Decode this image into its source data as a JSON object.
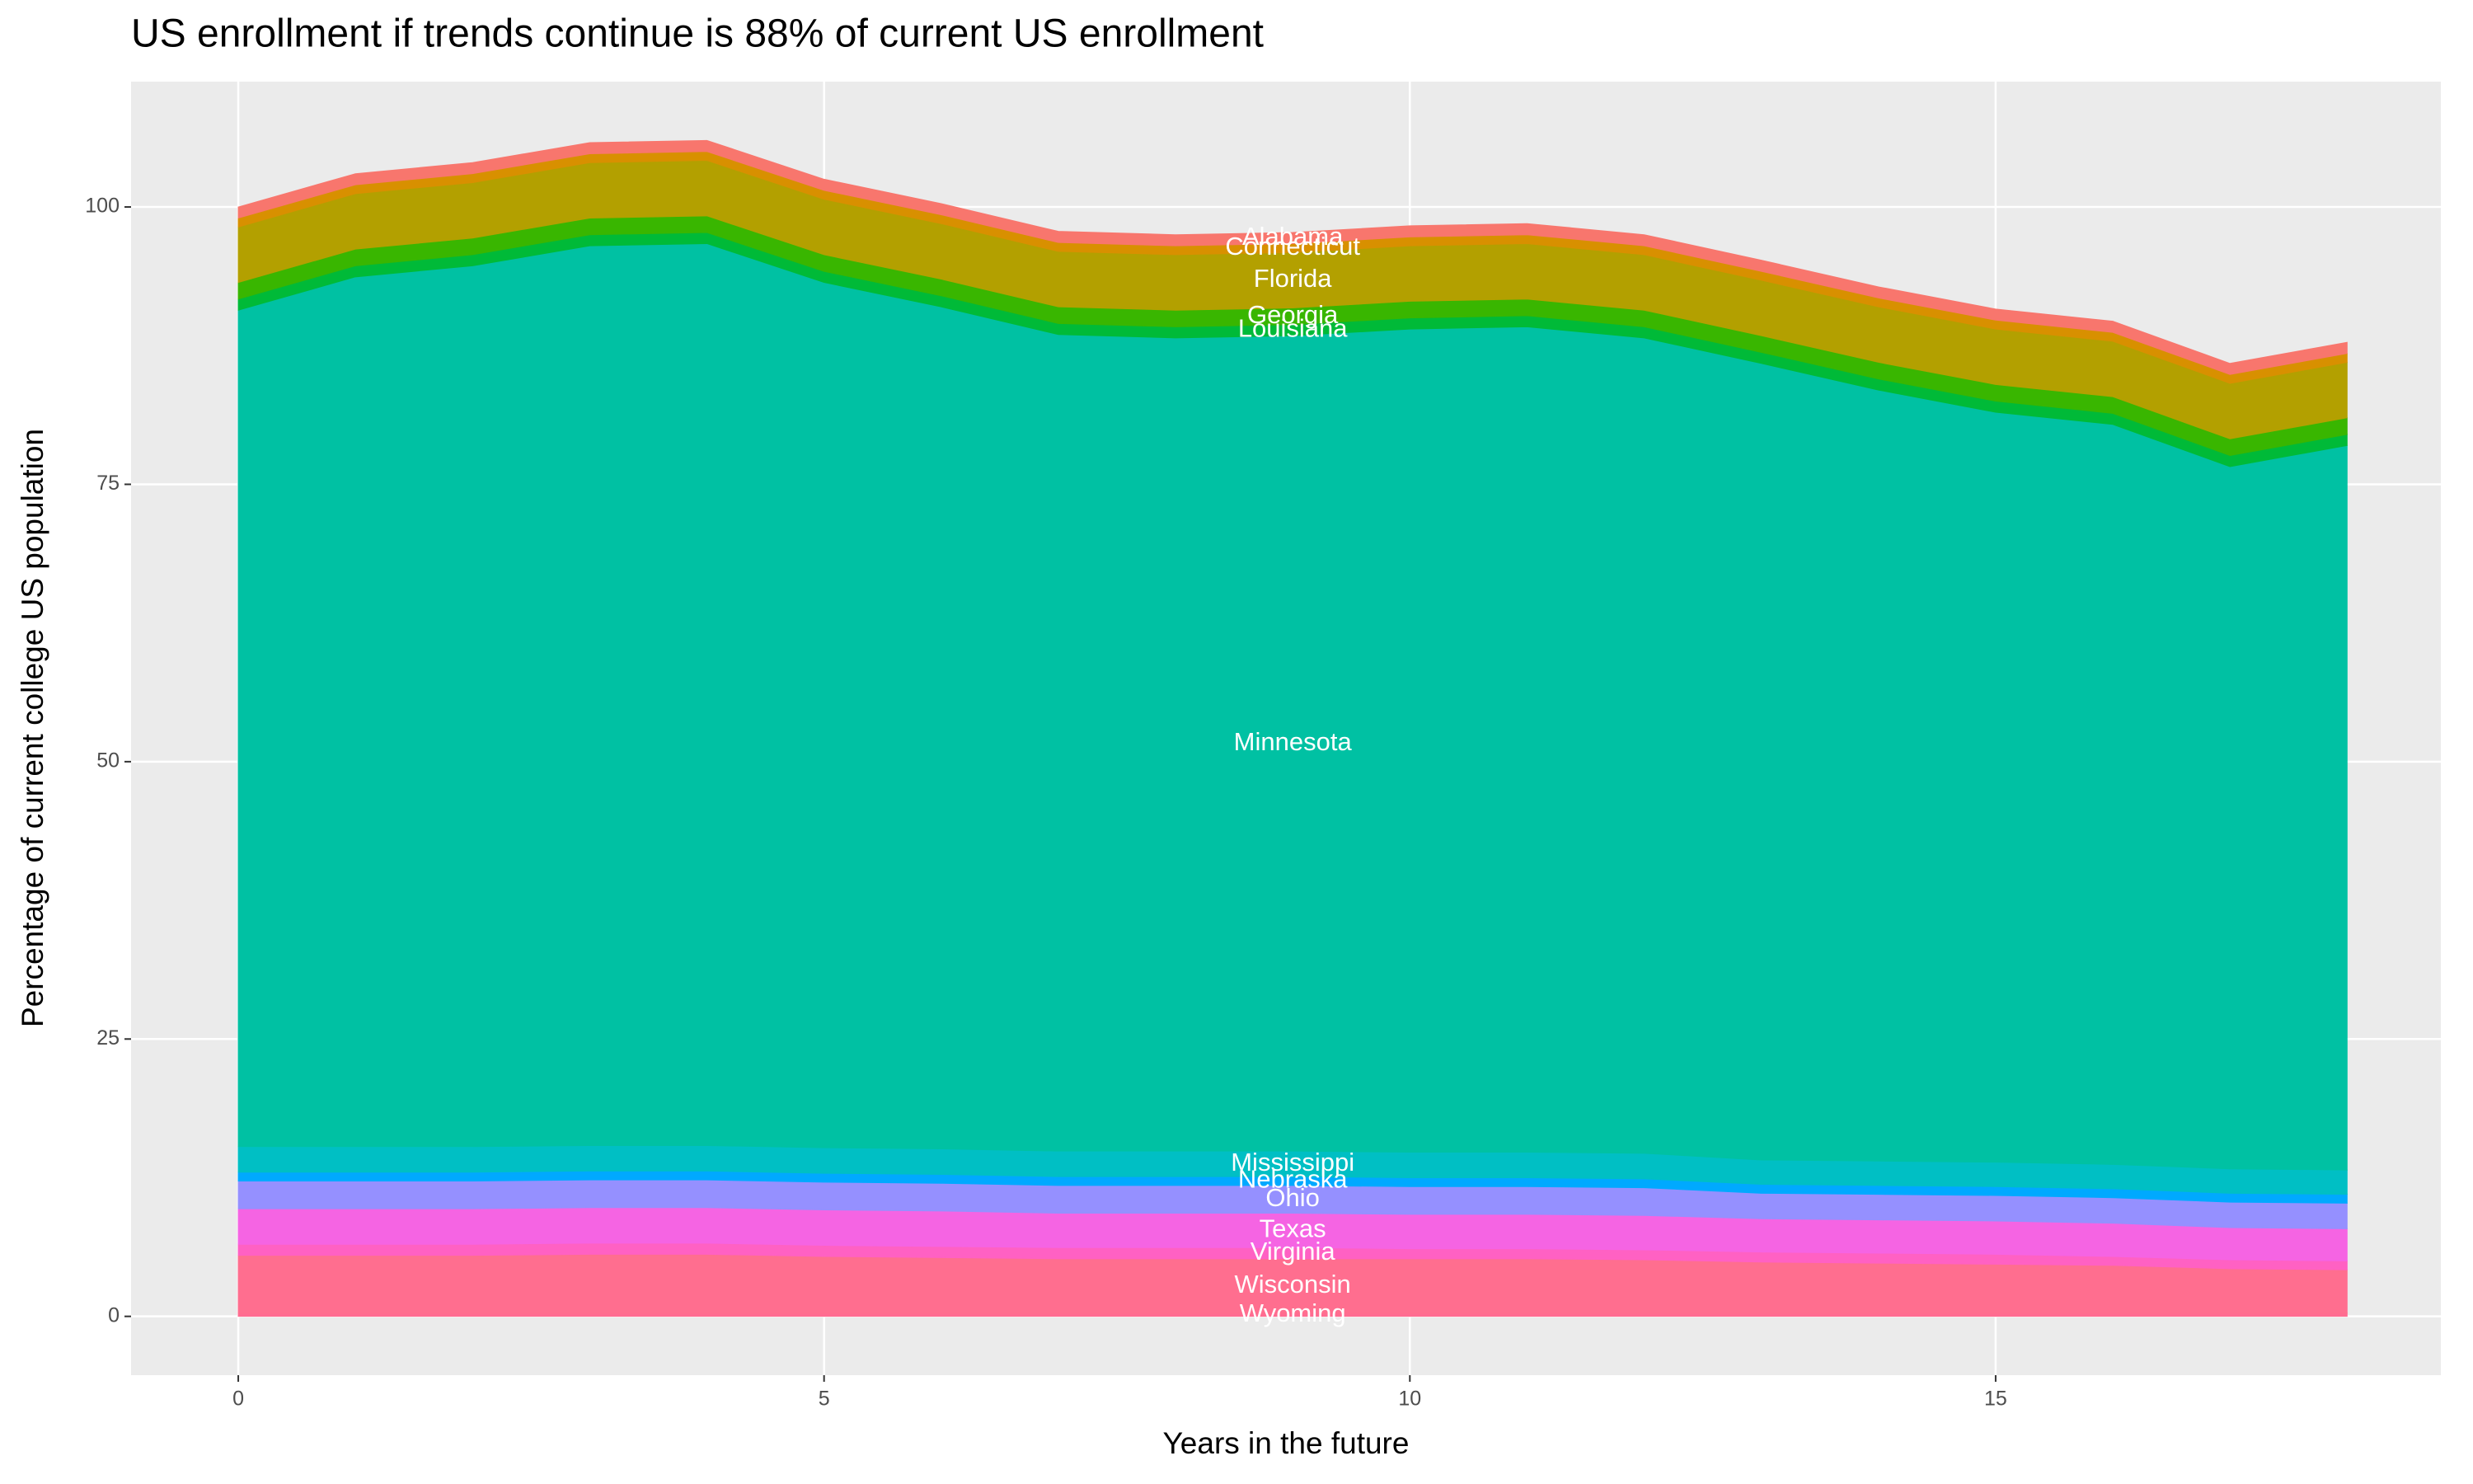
{
  "chart_data": {
    "type": "stacked_area",
    "title": "US enrollment if trends continue is 88% of current US enrollment",
    "x_label": "Years in the future",
    "y_label": "Percentage of current college US population",
    "x": [
      0,
      1,
      2,
      3,
      4,
      5,
      6,
      7,
      8,
      9,
      10,
      11,
      12,
      13,
      14,
      15,
      16,
      17,
      18
    ],
    "xlim": [
      -0.915,
      18.8
    ],
    "xticks": [
      0,
      5,
      10,
      15
    ],
    "ylim": [
      -5.3,
      111.3
    ],
    "yticks": [
      0,
      25,
      50,
      75,
      100
    ],
    "grid": true,
    "series": [
      {
        "name": "Wyoming",
        "color": "#FF6C91",
        "values": [
          0.3,
          0.3,
          0.3,
          0.3,
          0.3,
          0.3,
          0.3,
          0.3,
          0.3,
          0.3,
          0.3,
          0.3,
          0.3,
          0.3,
          0.3,
          0.3,
          0.3,
          0.3,
          0.3
        ]
      },
      {
        "name": "Wisconsin",
        "color": "#FF6E8F",
        "values": [
          5.2,
          5.2,
          5.2,
          5.3,
          5.3,
          5.1,
          5.0,
          4.9,
          4.9,
          4.9,
          4.9,
          4.9,
          4.8,
          4.6,
          4.5,
          4.4,
          4.3,
          4.0,
          3.9
        ]
      },
      {
        "name": "Virginia",
        "color": "#FF61C3",
        "values": [
          1.0,
          1.0,
          1.0,
          1.0,
          1.0,
          1.0,
          1.0,
          1.0,
          1.0,
          1.0,
          0.9,
          0.9,
          0.9,
          0.9,
          0.9,
          0.9,
          0.8,
          0.8,
          0.8
        ]
      },
      {
        "name": "Texas",
        "color": "#F564E3",
        "values": [
          3.2,
          3.2,
          3.2,
          3.2,
          3.2,
          3.2,
          3.2,
          3.1,
          3.1,
          3.1,
          3.1,
          3.1,
          3.1,
          3.0,
          3.0,
          3.0,
          3.0,
          2.9,
          2.9
        ]
      },
      {
        "name": "Ohio",
        "color": "#9590FF",
        "values": [
          2.5,
          2.5,
          2.5,
          2.5,
          2.5,
          2.5,
          2.5,
          2.5,
          2.5,
          2.5,
          2.5,
          2.5,
          2.5,
          2.3,
          2.3,
          2.3,
          2.3,
          2.3,
          2.3
        ]
      },
      {
        "name": "Nebraska",
        "color": "#00A9FF",
        "values": [
          0.8,
          0.8,
          0.8,
          0.8,
          0.8,
          0.8,
          0.8,
          0.8,
          0.8,
          0.8,
          0.8,
          0.8,
          0.8,
          0.8,
          0.8,
          0.8,
          0.8,
          0.8,
          0.8
        ]
      },
      {
        "name": "Mississippi",
        "color": "#00BFC4",
        "values": [
          2.3,
          2.3,
          2.3,
          2.3,
          2.3,
          2.3,
          2.3,
          2.3,
          2.3,
          2.3,
          2.3,
          2.3,
          2.3,
          2.2,
          2.2,
          2.2,
          2.2,
          2.2,
          2.2
        ]
      },
      {
        "name": "Minnesota",
        "color": "#00C1A3",
        "values": [
          75.4,
          78.4,
          79.4,
          81.1,
          81.3,
          78.0,
          75.9,
          73.6,
          73.3,
          73.5,
          74.2,
          74.4,
          73.5,
          71.8,
          69.5,
          67.6,
          66.7,
          63.3,
          65.3
        ]
      },
      {
        "name": "Louisiana",
        "color": "#00BA38",
        "values": [
          1.0,
          1.0,
          1.0,
          1.0,
          1.0,
          1.0,
          1.0,
          1.0,
          1.0,
          1.0,
          1.0,
          1.0,
          1.0,
          1.0,
          1.0,
          1.0,
          1.0,
          1.0,
          1.0
        ]
      },
      {
        "name": "Georgia",
        "color": "#39B600",
        "values": [
          1.5,
          1.5,
          1.5,
          1.5,
          1.5,
          1.5,
          1.5,
          1.5,
          1.5,
          1.5,
          1.5,
          1.5,
          1.5,
          1.5,
          1.5,
          1.5,
          1.5,
          1.5,
          1.5
        ]
      },
      {
        "name": "Florida",
        "color": "#B3A000",
        "values": [
          5.0,
          5.0,
          5.0,
          5.0,
          5.0,
          5.0,
          5.0,
          5.0,
          5.0,
          5.0,
          5.0,
          5.0,
          5.0,
          5.0,
          5.0,
          5.0,
          5.0,
          5.0,
          5.0
        ]
      },
      {
        "name": "Connecticut",
        "color": "#D89000",
        "values": [
          0.8,
          0.8,
          0.8,
          0.8,
          0.8,
          0.8,
          0.8,
          0.8,
          0.8,
          0.8,
          0.8,
          0.8,
          0.8,
          0.8,
          0.8,
          0.8,
          0.8,
          0.8,
          0.8
        ]
      },
      {
        "name": "Alabama",
        "color": "#F8766D",
        "values": [
          1.0,
          1.0,
          1.0,
          1.0,
          1.0,
          1.0,
          1.0,
          1.0,
          1.0,
          1.0,
          1.0,
          1.0,
          1.0,
          1.0,
          1.0,
          1.0,
          1.0,
          1.0,
          1.0
        ]
      }
    ]
  }
}
